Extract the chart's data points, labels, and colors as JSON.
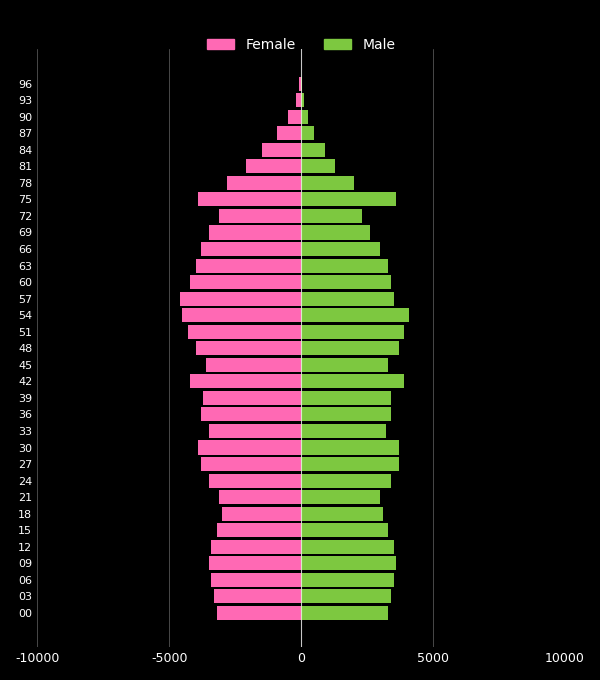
{
  "ages": [
    0,
    3,
    6,
    9,
    12,
    15,
    18,
    21,
    24,
    27,
    30,
    33,
    36,
    39,
    42,
    45,
    48,
    51,
    54,
    57,
    60,
    63,
    66,
    69,
    72,
    75,
    78,
    81,
    84,
    87,
    90,
    93,
    96
  ],
  "female": [
    3200,
    3300,
    3400,
    3500,
    3400,
    3200,
    3000,
    3100,
    3500,
    3800,
    3900,
    3500,
    3800,
    3700,
    4200,
    3600,
    4000,
    4300,
    4500,
    4600,
    4200,
    4000,
    3800,
    3500,
    3100,
    3900,
    2800,
    2100,
    1500,
    900,
    500,
    200,
    80
  ],
  "male": [
    3300,
    3400,
    3500,
    3600,
    3500,
    3300,
    3100,
    3000,
    3400,
    3700,
    3700,
    3200,
    3400,
    3400,
    3900,
    3300,
    3700,
    3900,
    4100,
    3500,
    3400,
    3300,
    3000,
    2600,
    2300,
    3600,
    2000,
    1300,
    900,
    500,
    250,
    100,
    30
  ],
  "bg_color": "#000000",
  "female_color": "#ff69b4",
  "male_color": "#7dc840",
  "text_color": "#ffffff",
  "grid_color": "#ffffff",
  "xlim": [
    -10000,
    10000
  ],
  "xticks": [
    -10000,
    -5000,
    0,
    5000,
    10000
  ],
  "xtick_labels": [
    "-10000",
    "-5000",
    "0",
    "5000",
    "10000"
  ],
  "bar_height": 0.85,
  "figsize": [
    6.0,
    6.8
  ],
  "dpi": 100,
  "legend_female": "Female",
  "legend_male": "Male"
}
